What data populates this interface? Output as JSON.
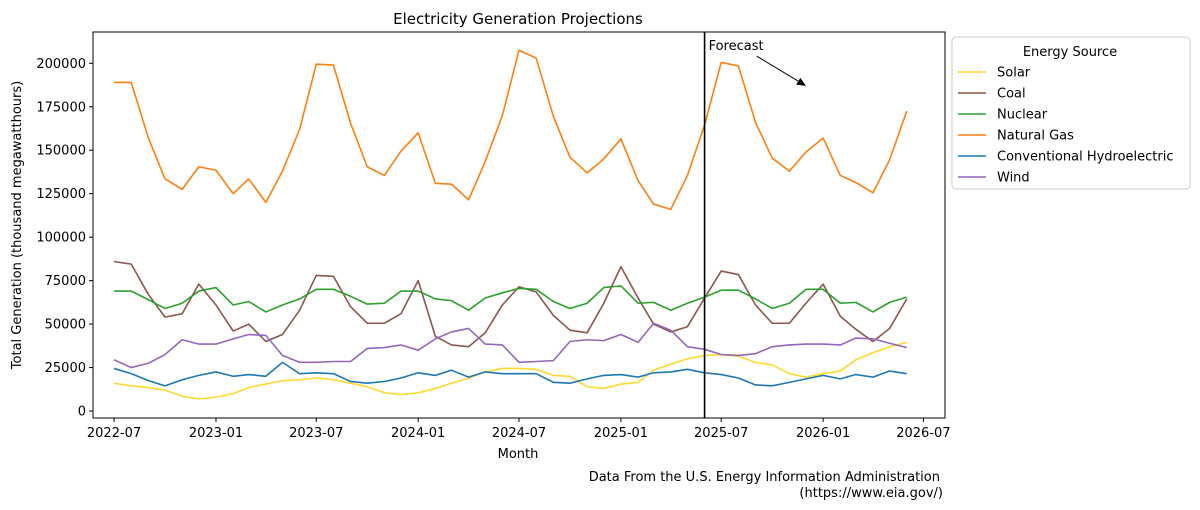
{
  "chart_data": {
    "type": "line",
    "title": "Electricity Generation Projections",
    "xlabel": "Month",
    "ylabel": "Total Generation (thousand megawatthours)",
    "xlim": [
      "2022-05-24",
      "2026-08-09"
    ],
    "ylim": [
      -4000,
      218000
    ],
    "x_ticks": [
      "2022-07",
      "2023-01",
      "2023-07",
      "2024-01",
      "2024-07",
      "2025-01",
      "2025-07",
      "2026-01",
      "2026-07"
    ],
    "y_ticks": [
      0,
      25000,
      50000,
      75000,
      100000,
      125000,
      150000,
      175000,
      200000
    ],
    "grid": false,
    "forecast_line_x": "2025-06-01",
    "annotation": {
      "text": "Forecast",
      "arrow_to": {
        "x": "2025-12-01",
        "y": 187000
      }
    },
    "legend": {
      "title": "Energy Source",
      "placement": "outside-right"
    },
    "source_note": [
      "Data From the U.S. Energy Information Administration",
      "(https://www.eia.gov/)"
    ],
    "x": [
      "2022-07",
      "2022-08",
      "2022-09",
      "2022-10",
      "2022-11",
      "2022-12",
      "2023-01",
      "2023-02",
      "2023-03",
      "2023-04",
      "2023-05",
      "2023-06",
      "2023-07",
      "2023-08",
      "2023-09",
      "2023-10",
      "2023-11",
      "2023-12",
      "2024-01",
      "2024-02",
      "2024-03",
      "2024-04",
      "2024-05",
      "2024-06",
      "2024-07",
      "2024-08",
      "2024-09",
      "2024-10",
      "2024-11",
      "2024-12",
      "2025-01",
      "2025-02",
      "2025-03",
      "2025-04",
      "2025-05",
      "2025-06",
      "2025-07",
      "2025-08",
      "2025-09",
      "2025-10",
      "2025-11",
      "2025-12",
      "2026-01",
      "2026-02",
      "2026-03",
      "2026-04",
      "2026-05",
      "2026-06"
    ],
    "series": [
      {
        "name": "Solar",
        "color": "#ffd92f",
        "values": [
          16000,
          14500,
          13500,
          12000,
          8500,
          7000,
          8000,
          10000,
          13500,
          15500,
          17500,
          18000,
          19000,
          18000,
          16000,
          14000,
          10500,
          9500,
          10500,
          13000,
          16000,
          19000,
          22500,
          24500,
          24500,
          24000,
          20500,
          20000,
          14000,
          13000,
          15500,
          16500,
          23500,
          27000,
          30000,
          32000,
          32500,
          31500,
          28000,
          26500,
          21500,
          19500,
          21500,
          23000,
          29500,
          33500,
          37000,
          39500
        ]
      },
      {
        "name": "Coal",
        "color": "#8c564b",
        "values": [
          86000,
          84500,
          67000,
          54000,
          56000,
          73000,
          61000,
          46000,
          50000,
          40000,
          44000,
          58000,
          78000,
          77500,
          60000,
          50500,
          50500,
          56000,
          75000,
          43000,
          38000,
          37000,
          45000,
          61000,
          71500,
          68500,
          55000,
          46500,
          45000,
          62000,
          83000,
          65000,
          50000,
          45500,
          48500,
          65000,
          80500,
          78500,
          61000,
          50500,
          50500,
          62000,
          73000,
          54500,
          47000,
          40000,
          47500,
          64500
        ]
      },
      {
        "name": "Nuclear",
        "color": "#2ca02c",
        "values": [
          69000,
          69000,
          64000,
          59000,
          62000,
          69000,
          71000,
          61000,
          63000,
          57000,
          61000,
          64500,
          70000,
          70000,
          66000,
          61500,
          62000,
          69000,
          69000,
          64500,
          63500,
          58000,
          65000,
          68000,
          70500,
          70000,
          63000,
          59000,
          62000,
          71000,
          72000,
          62000,
          62500,
          58000,
          62000,
          65500,
          69500,
          69500,
          64500,
          59000,
          62000,
          70000,
          70000,
          62000,
          62500,
          57000,
          62500,
          65500
        ]
      },
      {
        "name": "Natural Gas",
        "color": "#ff7f0e",
        "values": [
          189000,
          189000,
          157000,
          133500,
          127500,
          140500,
          138500,
          125000,
          133500,
          120000,
          138000,
          162000,
          199500,
          199000,
          165500,
          140500,
          135500,
          149500,
          160000,
          131000,
          130500,
          121500,
          143500,
          170000,
          207500,
          203000,
          169500,
          146000,
          137000,
          145000,
          156500,
          132500,
          119000,
          116000,
          135500,
          164500,
          200500,
          198500,
          166000,
          145500,
          138000,
          149000,
          157000,
          135500,
          131500,
          125500,
          144500,
          172500
        ]
      },
      {
        "name": "Conventional Hydroelectric",
        "color": "#1f77b4",
        "values": [
          24500,
          21500,
          17500,
          14500,
          18000,
          20500,
          22500,
          20000,
          21000,
          20000,
          28000,
          21500,
          22000,
          21500,
          17000,
          16000,
          17000,
          19000,
          22000,
          20500,
          23500,
          19500,
          22500,
          21500,
          21500,
          21500,
          16500,
          16000,
          18500,
          20500,
          21000,
          19500,
          22000,
          22500,
          24000,
          22000,
          21000,
          19000,
          15000,
          14500,
          16500,
          18500,
          20500,
          18500,
          21000,
          19500,
          23000,
          21500
        ]
      },
      {
        "name": "Wind",
        "color": "#9467bd",
        "values": [
          29500,
          25000,
          27500,
          32500,
          41000,
          38500,
          38500,
          41500,
          44000,
          43500,
          32000,
          28000,
          28000,
          28500,
          28500,
          36000,
          36500,
          38000,
          35000,
          41500,
          45500,
          47500,
          38500,
          38000,
          28000,
          28500,
          29000,
          40000,
          41000,
          40500,
          44000,
          39500,
          50500,
          46500,
          37000,
          35500,
          32500,
          32000,
          33000,
          37000,
          38000,
          38500,
          38500,
          38000,
          42000,
          41500,
          39000,
          36500
        ]
      }
    ]
  }
}
